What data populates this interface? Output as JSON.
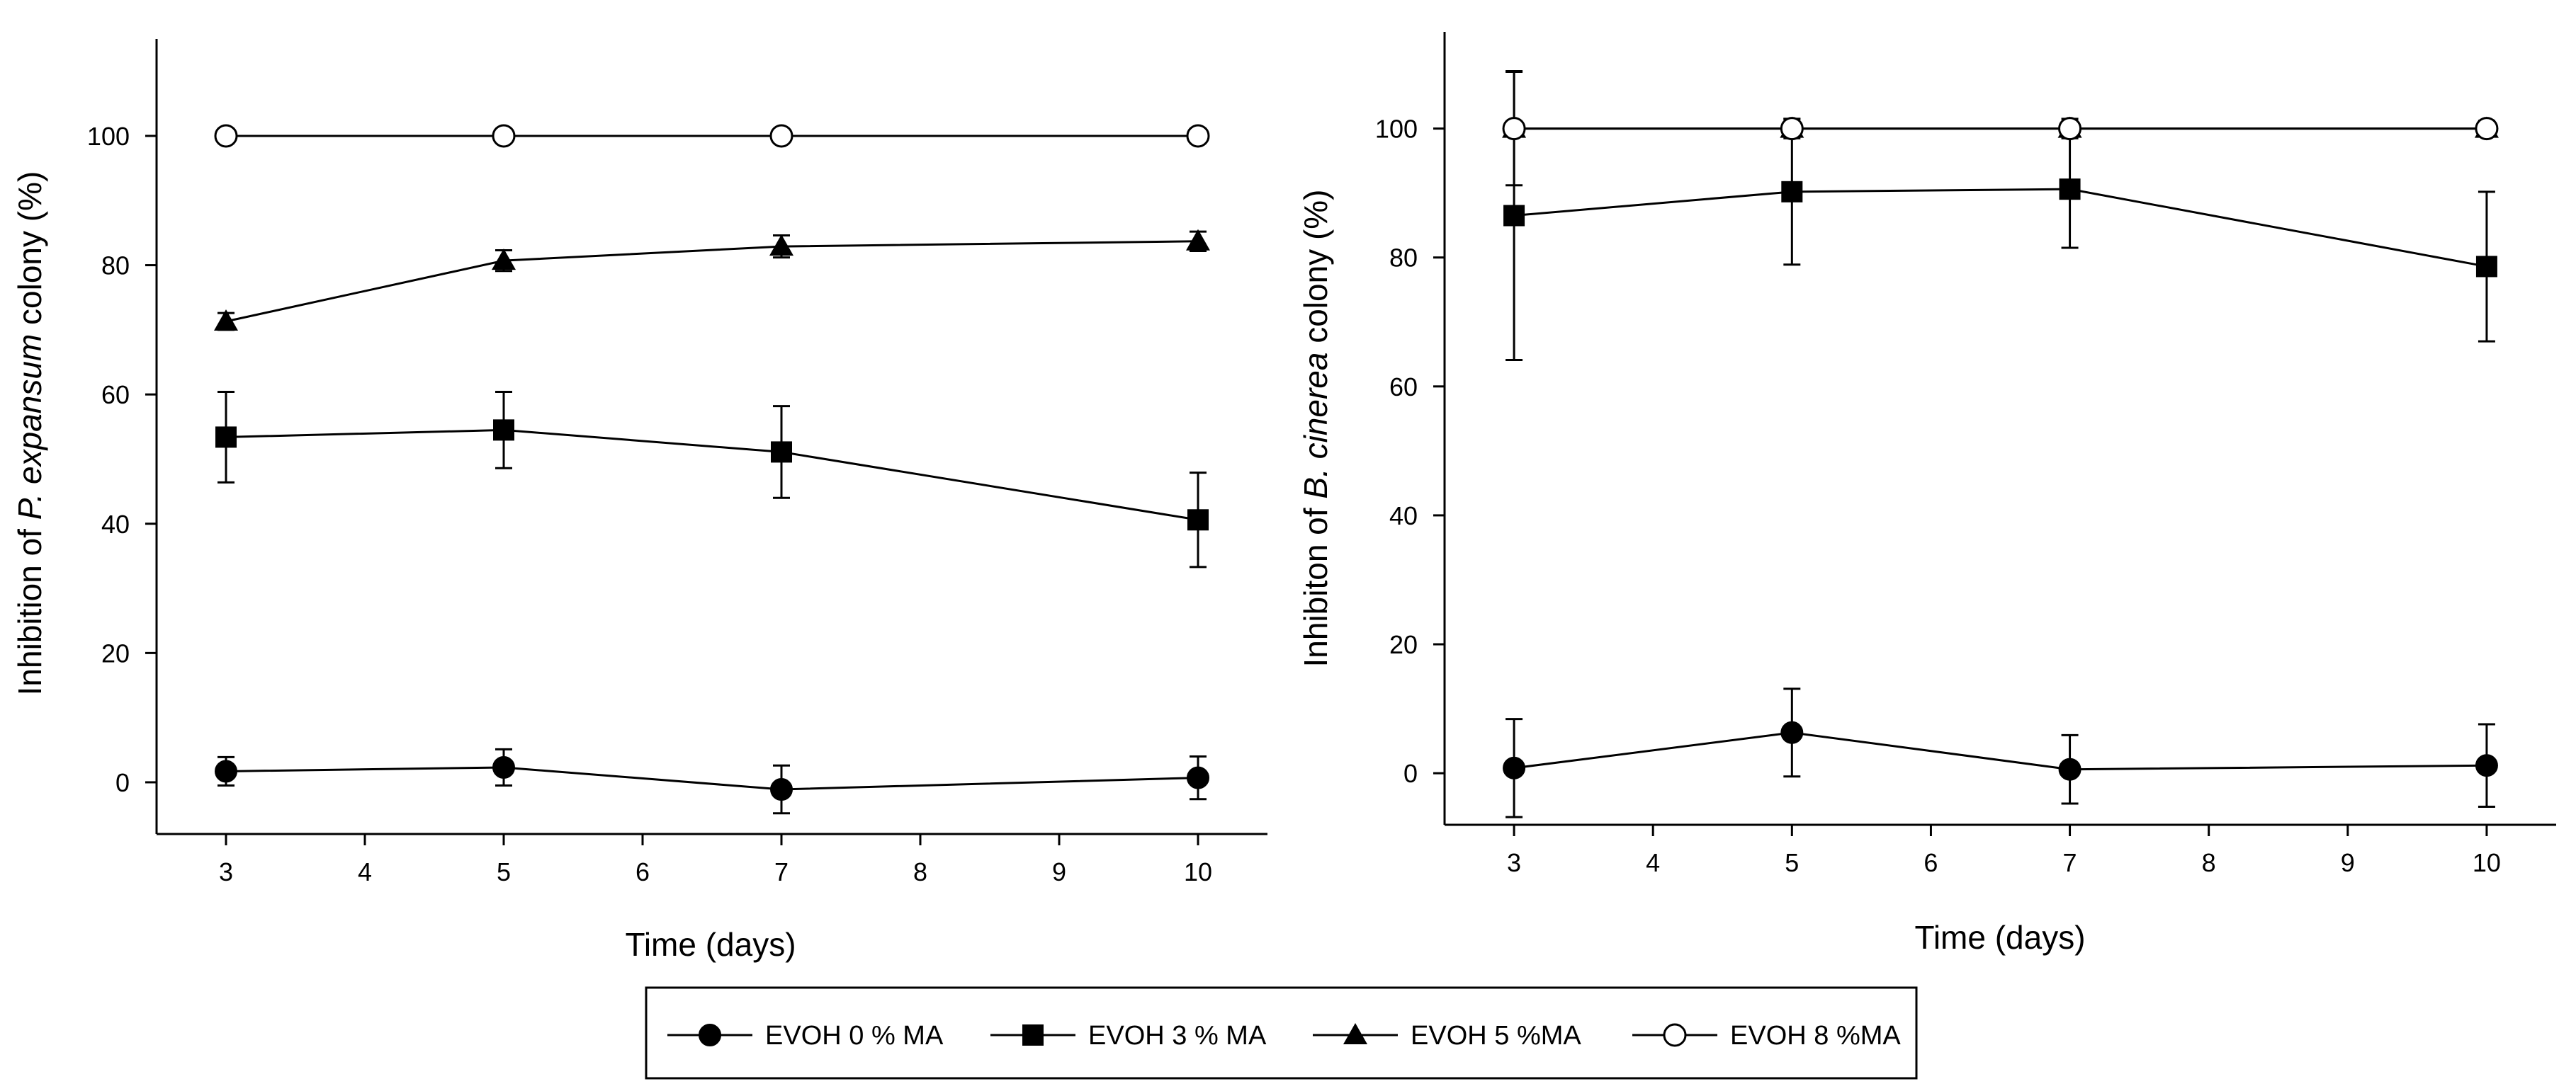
{
  "chart_data": [
    {
      "type": "line",
      "ylabel_prefix": "Inhibition of ",
      "ylabel_italic": "P. expansum",
      "ylabel_suffix": " colony (%)",
      "xlabel": "Time (days)",
      "xlim": [
        2.5,
        10.5
      ],
      "ylim": [
        -8,
        115
      ],
      "xticks": [
        3,
        4,
        5,
        6,
        7,
        8,
        9,
        10
      ],
      "yticks": [
        0,
        20,
        40,
        60,
        80,
        100
      ],
      "x": [
        3,
        5,
        7,
        10
      ],
      "series": [
        {
          "name": "EVOH 0 % MA",
          "marker": "circle-filled",
          "values": [
            1.7,
            2.3,
            -1.1,
            0.7
          ],
          "errors": [
            2.2,
            2.8,
            3.7,
            3.3
          ]
        },
        {
          "name": "EVOH 3 % MA",
          "marker": "square-filled",
          "values": [
            53.4,
            54.5,
            51.1,
            40.6
          ],
          "errors": [
            7.0,
            5.9,
            7.1,
            7.3
          ]
        },
        {
          "name": "EVOH 5 %MA",
          "marker": "triangle-filled",
          "values": [
            71.3,
            80.7,
            82.9,
            83.7
          ],
          "errors": [
            1.3,
            1.6,
            1.7,
            1.5
          ]
        },
        {
          "name": "EVOH 8 %MA",
          "marker": "circle-open",
          "values": [
            100,
            100,
            100,
            100
          ],
          "errors": [
            0,
            0,
            0,
            0
          ]
        }
      ]
    },
    {
      "type": "line",
      "ylabel_prefix": "Inhibiton of ",
      "ylabel_italic": "B. cinerea",
      "ylabel_suffix": " colony (%)",
      "xlabel": "Time (days)",
      "xlim": [
        2.5,
        10.5
      ],
      "ylim": [
        -8,
        115
      ],
      "xticks": [
        3,
        4,
        5,
        6,
        7,
        8,
        9,
        10
      ],
      "yticks": [
        0,
        20,
        40,
        60,
        80,
        100
      ],
      "x": [
        3,
        5,
        7,
        10
      ],
      "series": [
        {
          "name": "EVOH 0 % MA",
          "marker": "circle-filled",
          "values": [
            0.8,
            6.3,
            0.6,
            1.2
          ],
          "errors": [
            7.6,
            6.8,
            5.3,
            6.4
          ]
        },
        {
          "name": "EVOH 3 % MA",
          "marker": "square-filled",
          "values": [
            86.5,
            90.2,
            90.6,
            78.6
          ],
          "errors": [
            22.4,
            11.3,
            9.1,
            11.6
          ]
        },
        {
          "name": "EVOH 5 %MA",
          "marker": "triangle-filled",
          "values": [
            100,
            100,
            100,
            100
          ],
          "errors": [
            0,
            0,
            0,
            0
          ]
        },
        {
          "name": "EVOH 8 %MA",
          "marker": "circle-open",
          "values": [
            100,
            100,
            100,
            100
          ],
          "errors": [
            8.8,
            1.5,
            1.5,
            1.2
          ]
        }
      ]
    }
  ],
  "legend": {
    "entries": [
      {
        "label": "EVOH 0 % MA",
        "marker": "circle-filled"
      },
      {
        "label": "EVOH 3 % MA",
        "marker": "square-filled"
      },
      {
        "label": "EVOH 5 %MA",
        "marker": "triangle-filled"
      },
      {
        "label": "EVOH 8 %MA",
        "marker": "circle-open"
      }
    ]
  }
}
